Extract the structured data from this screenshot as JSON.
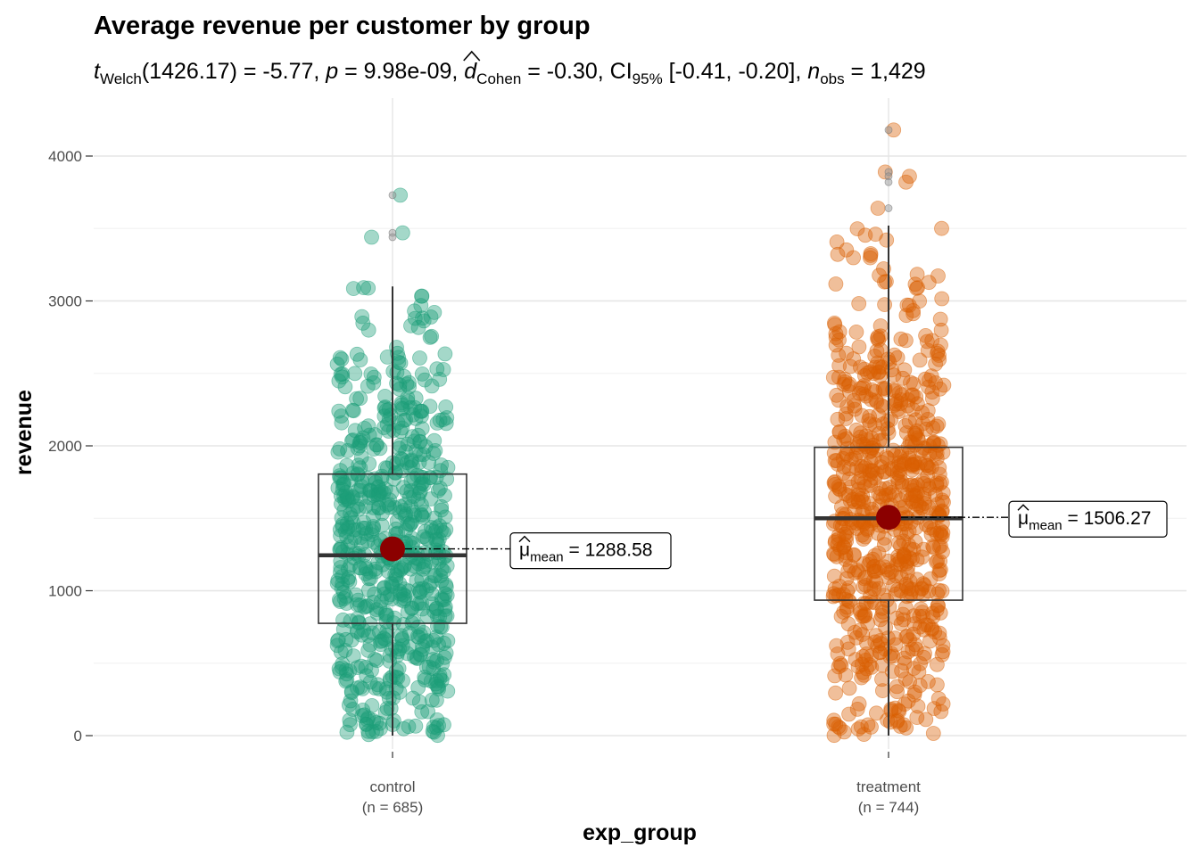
{
  "chart_data": {
    "type": "box-violin-scatter",
    "title": "Average revenue per customer by group",
    "subtitle": {
      "stat_symbol": "t",
      "stat_sub": "Welch",
      "stat_value": "(1426.17) = -5.77, ",
      "p_symbol": "p",
      "p_value": " = 9.98e-09, ",
      "effect_symbol": "d",
      "effect_sub": "Cohen",
      "effect_value": " = -0.30, CI",
      "ci_sub": "95%",
      "ci_value": " [-0.41, -0.20], ",
      "n_symbol": "n",
      "n_sub": "obs",
      "n_value": " = 1,429"
    },
    "xlabel": "exp_group",
    "ylabel": "revenue",
    "ylim": [
      -250,
      4380
    ],
    "yticks": [
      0,
      1000,
      2000,
      3000,
      4000
    ],
    "grid": true,
    "groups": [
      {
        "category": "control",
        "n_label": "(n = 685)",
        "n": 685,
        "color": "#1B9E77",
        "q1": 775,
        "median": 1245,
        "q3": 1805,
        "whisker_low": 0,
        "whisker_high": 3100,
        "mean": 1288.58,
        "mean_label_sym": "μ",
        "mean_label_sub": "mean",
        "mean_label_value": " = 1288.58",
        "outliers": [
          3730,
          3470,
          3440
        ]
      },
      {
        "category": "treatment",
        "n_label": "(n = 744)",
        "n": 744,
        "color": "#D95F02",
        "q1": 935,
        "median": 1500,
        "q3": 1990,
        "whisker_low": 0,
        "whisker_high": 3520,
        "mean": 1506.27,
        "mean_label_sym": "μ",
        "mean_label_sub": "mean",
        "mean_label_value": " = 1506.27",
        "outliers": [
          4180,
          3890,
          3860,
          3820,
          3640
        ]
      }
    ]
  }
}
